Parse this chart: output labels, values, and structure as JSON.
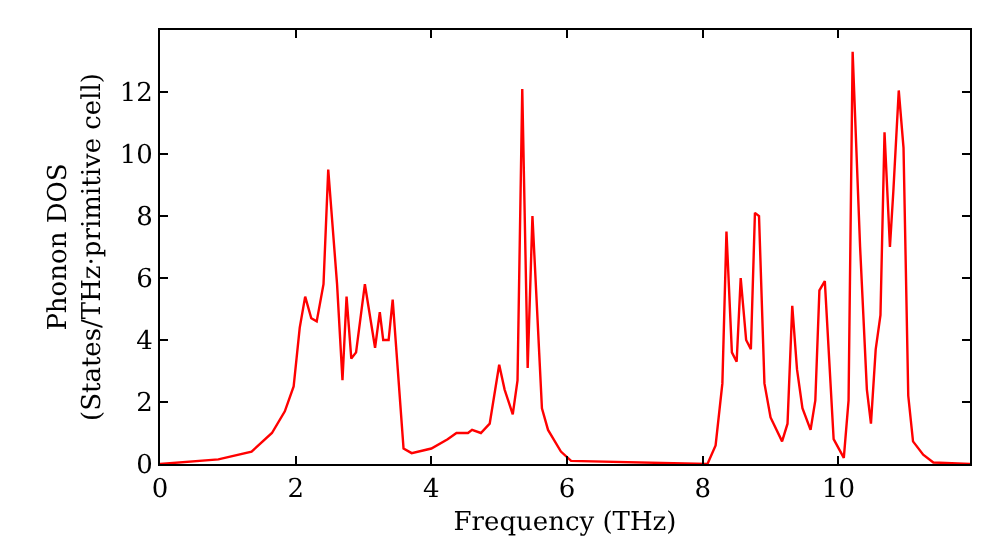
{
  "chart_data": {
    "type": "line",
    "xlabel": "Frequency (THz)",
    "ylabel": "Phonon DOS\n(States/THz·primitive cell)",
    "x": [
      0,
      0.86,
      1.35,
      1.65,
      1.84,
      1.97,
      2.06,
      2.14,
      2.23,
      2.31,
      2.41,
      2.48,
      2.61,
      2.69,
      2.75,
      2.82,
      2.89,
      3.02,
      3.17,
      3.24,
      3.29,
      3.37,
      3.43,
      3.59,
      3.71,
      4.0,
      4.24,
      4.37,
      4.54,
      4.6,
      4.73,
      4.86,
      5.0,
      5.08,
      5.2,
      5.27,
      5.34,
      5.42,
      5.49,
      5.63,
      5.72,
      5.91,
      6.06,
      8.07,
      8.19,
      8.29,
      8.35,
      8.43,
      8.5,
      8.56,
      8.64,
      8.71,
      8.77,
      8.83,
      8.91,
      9.0,
      9.17,
      9.25,
      9.32,
      9.39,
      9.47,
      9.59,
      9.66,
      9.72,
      9.8,
      9.93,
      10.08,
      10.15,
      10.21,
      10.32,
      10.42,
      10.48,
      10.55,
      10.62,
      10.68,
      10.76,
      10.81,
      10.89,
      10.96,
      11.03,
      11.1,
      11.25,
      11.4,
      11.94
    ],
    "series": [
      {
        "color": "#ff0000",
        "values": [
          0,
          0.15,
          0.4,
          1.0,
          1.7,
          2.5,
          4.4,
          5.4,
          4.7,
          4.6,
          5.8,
          9.5,
          5.8,
          2.7,
          5.4,
          3.4,
          3.6,
          5.8,
          3.75,
          4.9,
          4.0,
          4.0,
          5.3,
          0.5,
          0.35,
          0.5,
          0.8,
          1.0,
          1.0,
          1.1,
          1.0,
          1.3,
          3.2,
          2.4,
          1.6,
          2.7,
          12.1,
          3.1,
          8.0,
          1.8,
          1.1,
          0.4,
          0.1,
          0,
          0.6,
          2.6,
          7.5,
          3.6,
          3.3,
          6.0,
          4.0,
          3.7,
          8.1,
          8.0,
          2.6,
          1.5,
          0.73,
          1.3,
          5.1,
          3.05,
          1.8,
          1.1,
          2.05,
          5.6,
          5.9,
          0.8,
          0.2,
          2.05,
          13.3,
          7.0,
          2.4,
          1.3,
          3.7,
          4.8,
          10.7,
          7.0,
          8.8,
          12.05,
          10.2,
          2.2,
          0.73,
          0.3,
          0.05,
          0
        ]
      }
    ],
    "xlim": [
      0,
      11.94
    ],
    "ylim": [
      0,
      14
    ],
    "xticks": [
      0,
      2,
      4,
      6,
      8,
      10
    ],
    "yticks": [
      0,
      2,
      4,
      6,
      8,
      10,
      12
    ],
    "marker": "none",
    "line_style": "solid"
  }
}
